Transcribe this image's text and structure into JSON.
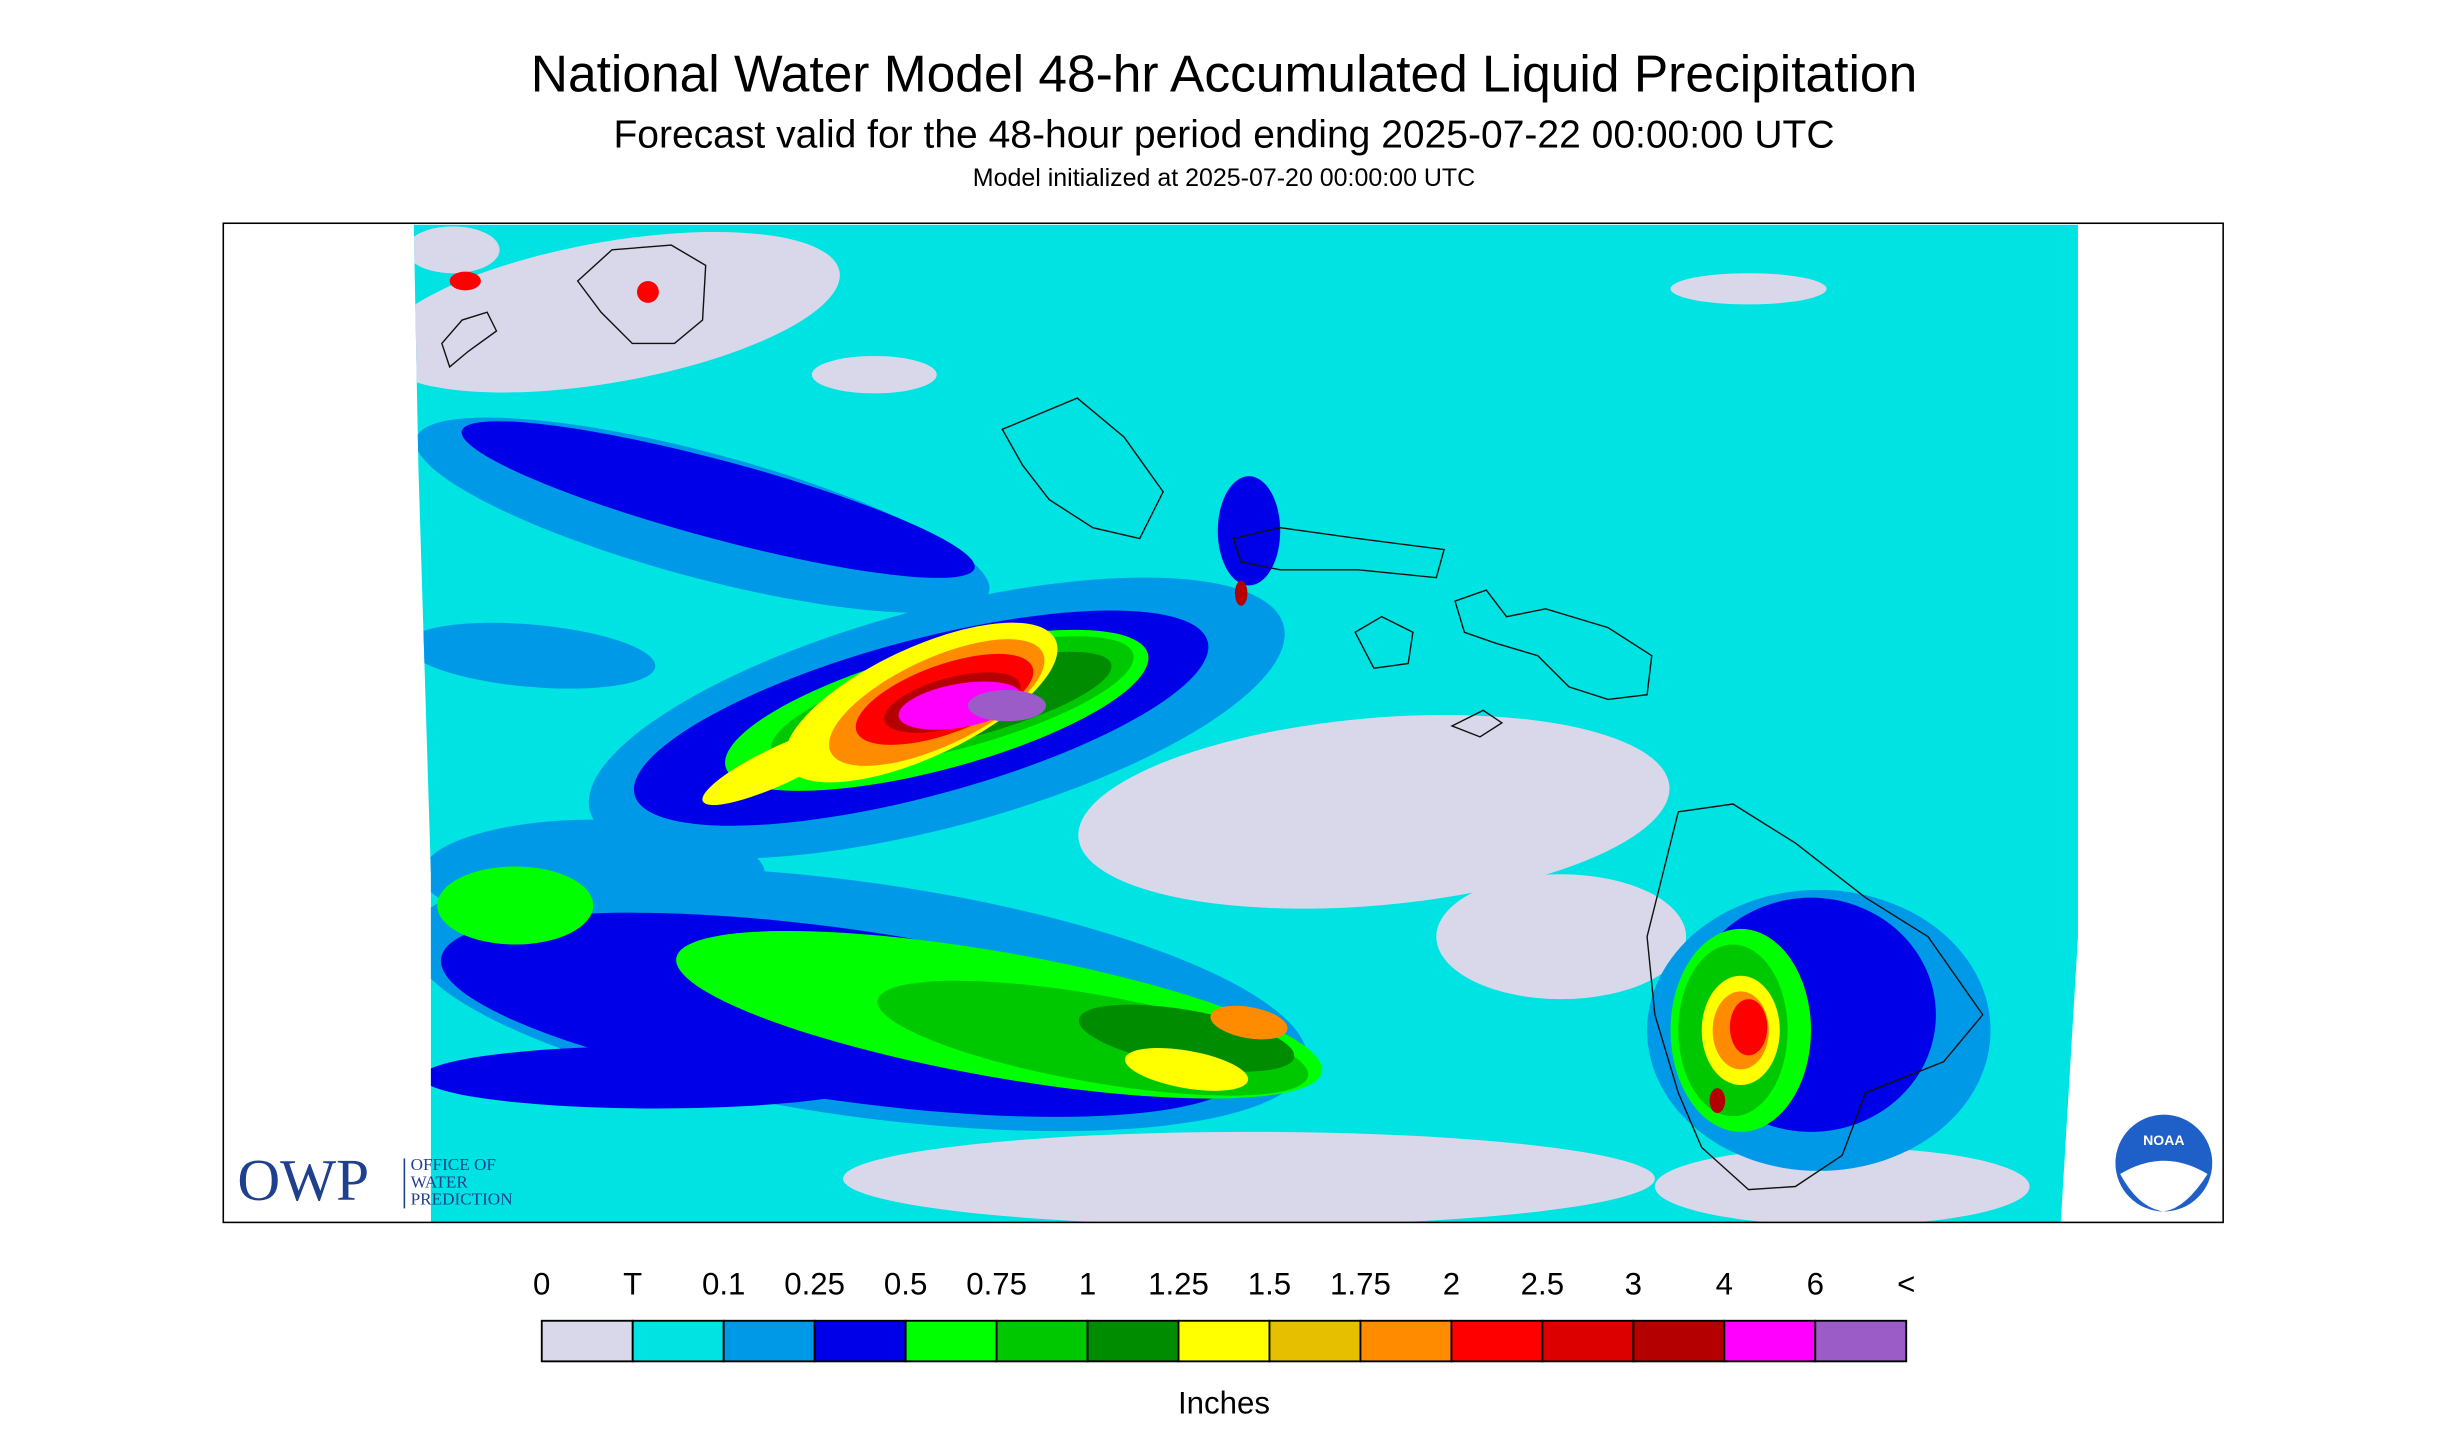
{
  "header": {
    "title": "National Water Model 48-hr Accumulated Liquid Precipitation",
    "subtitle": "Forecast valid for the 48-hour period ending 2025-07-22 00:00:00 UTC",
    "initialized": "Model initialized at 2025-07-20 00:00:00 UTC"
  },
  "legend": {
    "labels": [
      "0",
      "T",
      "0.1",
      "0.25",
      "0.5",
      "0.75",
      "1",
      "1.25",
      "1.5",
      "1.75",
      "2",
      "2.5",
      "3",
      "4",
      "6",
      "<"
    ],
    "colors": [
      "#d8d8ea",
      "#00e3e3",
      "#0099e8",
      "#0000e8",
      "#00ff00",
      "#00c800",
      "#008c00",
      "#ffff00",
      "#e6c000",
      "#ff8c00",
      "#ff0000",
      "#dc0000",
      "#b40000",
      "#ff00ff",
      "#9c5cc8"
    ],
    "unit": "Inches"
  },
  "logos": {
    "owp": "OWP",
    "owp_lines": [
      "OFFICE OF",
      "WATER",
      "PREDICTION"
    ],
    "noaa": "NOAA"
  }
}
